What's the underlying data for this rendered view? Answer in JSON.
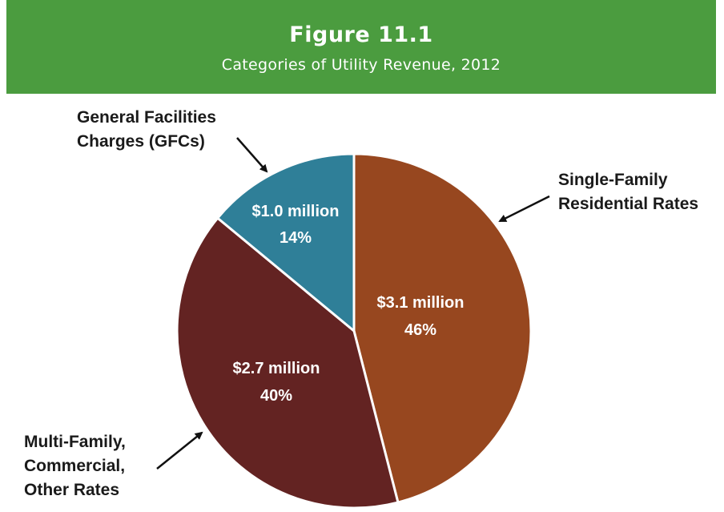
{
  "header": {
    "figure_number": "Figure 11.1",
    "figure_title": "Categories of Utility Revenue, 2012"
  },
  "colors": {
    "banner": "#4b9c3f",
    "single_family": "#97471f",
    "multi_family": "#632322",
    "gfc": "#2f7f98"
  },
  "chart_data": {
    "type": "pie",
    "title": "Categories of Utility Revenue, 2012",
    "slices": [
      {
        "key": "single_family",
        "label_lines": [
          "Single-Family",
          "Residential Rates"
        ],
        "value_label": "$3.1 million",
        "value": 3.1,
        "percent": 46,
        "percent_label": "46%"
      },
      {
        "key": "multi_family",
        "label_lines": [
          "Multi-Family,",
          "Commercial,",
          "Other Rates"
        ],
        "value_label": "$2.7 million",
        "value": 2.7,
        "percent": 40,
        "percent_label": "40%"
      },
      {
        "key": "gfc",
        "label_lines": [
          "General Facilities",
          "Charges (GFCs)"
        ],
        "value_label": "$1.0 million",
        "value": 1.0,
        "percent": 14,
        "percent_label": "14%"
      }
    ]
  }
}
